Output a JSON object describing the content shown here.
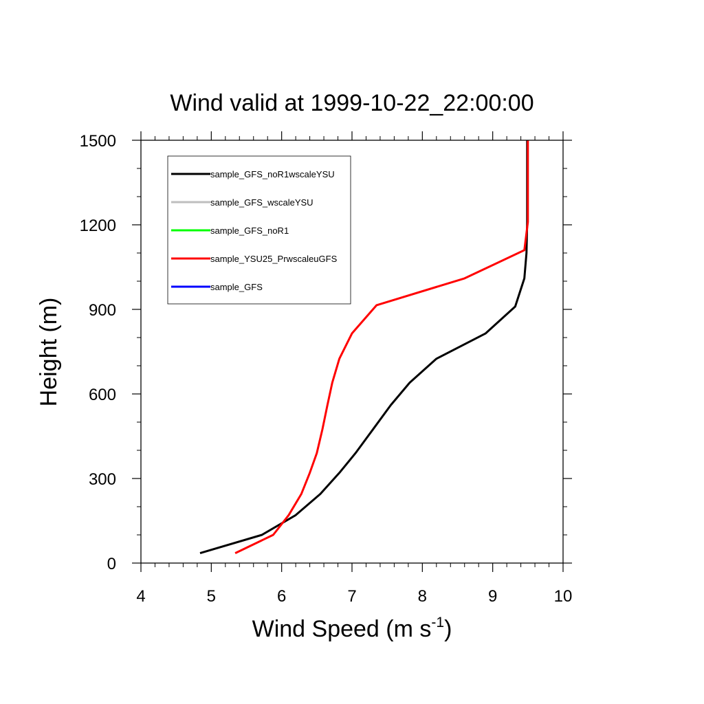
{
  "chart_data": {
    "type": "line",
    "title": "Wind valid at 1999-10-22_22:00:00",
    "xlabel": "Wind Speed (m s",
    "xlabel_superscript": "-1",
    "xlabel_suffix": ")",
    "ylabel": "Height (m)",
    "xlim": [
      4,
      10
    ],
    "ylim": [
      0,
      1500
    ],
    "x_ticks": [
      4,
      5,
      6,
      7,
      8,
      9,
      10
    ],
    "y_ticks": [
      0,
      300,
      600,
      900,
      1200,
      1500
    ],
    "legend_position": "top-left",
    "series": [
      {
        "name": "sample_GFS_noR1wscaleYSU",
        "color": "#000000",
        "points": [
          [
            4.84,
            35
          ],
          [
            5.72,
            100
          ],
          [
            6.2,
            170
          ],
          [
            6.55,
            245
          ],
          [
            6.82,
            320
          ],
          [
            7.05,
            390
          ],
          [
            7.3,
            475
          ],
          [
            7.55,
            560
          ],
          [
            7.82,
            640
          ],
          [
            8.2,
            725
          ],
          [
            8.9,
            815
          ],
          [
            9.32,
            910
          ],
          [
            9.45,
            1010
          ],
          [
            9.48,
            1100
          ],
          [
            9.49,
            1210
          ],
          [
            9.49,
            1320
          ],
          [
            9.49,
            1500
          ]
        ]
      },
      {
        "name": "sample_GFS_wscaleYSU",
        "color": "#bebebe",
        "points": []
      },
      {
        "name": "sample_GFS_noR1",
        "color": "#00ff00",
        "points": []
      },
      {
        "name": "sample_YSU25_PrwscaleuGFS",
        "color": "#ff0000",
        "points": [
          [
            5.34,
            35
          ],
          [
            5.88,
            100
          ],
          [
            6.1,
            170
          ],
          [
            6.28,
            245
          ],
          [
            6.4,
            320
          ],
          [
            6.5,
            390
          ],
          [
            6.58,
            475
          ],
          [
            6.65,
            560
          ],
          [
            6.72,
            640
          ],
          [
            6.82,
            725
          ],
          [
            7.0,
            815
          ],
          [
            7.35,
            915
          ],
          [
            8.6,
            1010
          ],
          [
            9.45,
            1110
          ],
          [
            9.5,
            1210
          ],
          [
            9.5,
            1320
          ],
          [
            9.5,
            1500
          ]
        ]
      },
      {
        "name": "sample_GFS",
        "color": "#0000ff",
        "points": []
      }
    ]
  }
}
